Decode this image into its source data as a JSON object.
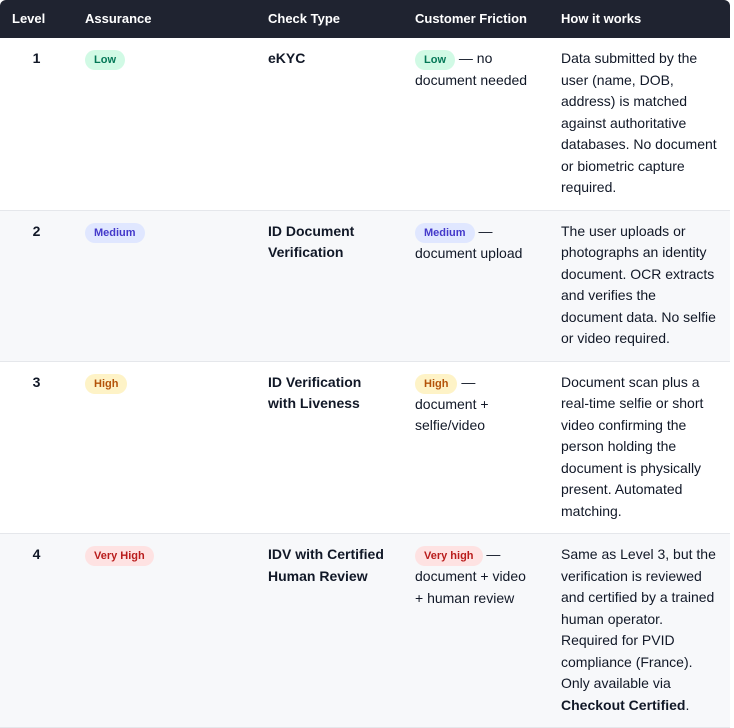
{
  "table": {
    "header": [
      "Level",
      "Assurance",
      "Check Type",
      "Customer Friction",
      "How it works"
    ],
    "rows": [
      {
        "level": "1",
        "assurance": "Low",
        "check_type": "eKYC",
        "friction_badge": "Low",
        "friction_text": "— no document needed",
        "how": "Data submitted by the user (name, DOB, address) is matched against authoritative databases. No document or biometric capture required."
      },
      {
        "level": "2",
        "assurance": "Medium",
        "check_type": "ID Document Verification",
        "friction_badge": "Medium",
        "friction_text": "— document upload",
        "how": "The user uploads or photographs an identity document. OCR extracts and verifies the document data. No selfie or video required."
      },
      {
        "level": "3",
        "assurance": "High",
        "check_type": "ID Verification with Liveness",
        "friction_badge": "High",
        "friction_text": "— document + selfie/video",
        "how": "Document scan plus a real-time selfie or short video confirming the person holding the document is physically present. Automated matching."
      },
      {
        "level": "4",
        "assurance": "Very High",
        "check_type": "IDV with Certified Human Review",
        "friction_badge": "Very high",
        "friction_text": "— document + video + human review",
        "how": "Same as Level 3, but the verification is reviewed and certified by a trained human operator. Required for PVID compliance (France). Only available via",
        "how_bold": "Checkout Certified",
        "how_end": "."
      }
    ]
  }
}
